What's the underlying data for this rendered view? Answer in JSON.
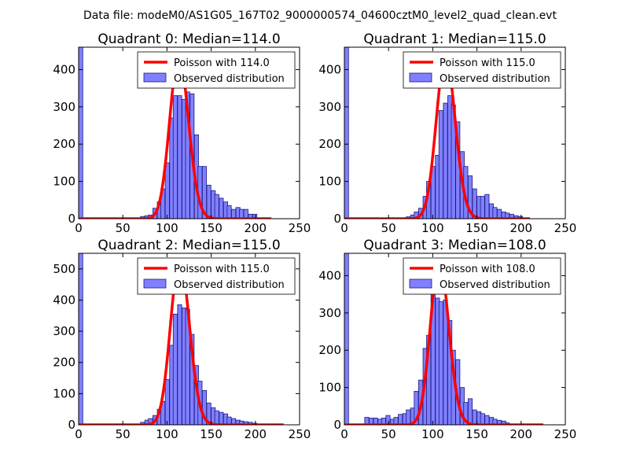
{
  "figure": {
    "suptitle": "Data file: modeM0/AS1G05_167T02_9000000574_04600cztM0_level2_quad_clean.evt",
    "colors": {
      "bar_fill": "#8080ff",
      "bar_edge": "#1a1a80",
      "poisson_line": "#ff0000",
      "axes": "#000000"
    }
  },
  "chart_data": [
    {
      "type": "bar",
      "title": "Quadrant 0: Median=114.0",
      "xlim": [
        0,
        250
      ],
      "ylim": [
        0,
        460
      ],
      "xticks": [
        0,
        50,
        100,
        150,
        200,
        250
      ],
      "yticks": [
        0,
        100,
        200,
        300,
        400
      ],
      "bin_width": 4.7,
      "bins": [
        [
          0,
          460
        ],
        [
          70,
          6
        ],
        [
          75,
          8
        ],
        [
          79,
          10
        ],
        [
          84,
          28
        ],
        [
          89,
          45
        ],
        [
          93,
          80
        ],
        [
          98,
          150
        ],
        [
          103,
          270
        ],
        [
          107,
          330
        ],
        [
          112,
          330
        ],
        [
          117,
          320
        ],
        [
          121,
          340
        ],
        [
          126,
          335
        ],
        [
          131,
          225
        ],
        [
          135,
          140
        ],
        [
          140,
          140
        ],
        [
          145,
          90
        ],
        [
          150,
          75
        ],
        [
          154,
          65
        ],
        [
          159,
          55
        ],
        [
          164,
          45
        ],
        [
          168,
          35
        ],
        [
          173,
          25
        ],
        [
          178,
          30
        ],
        [
          182,
          25
        ],
        [
          187,
          25
        ],
        [
          192,
          12
        ],
        [
          197,
          12
        ]
      ],
      "poisson": {
        "label": "Poisson with 114.0",
        "mean": 114.0,
        "peak": 435,
        "x_range": [
          0,
          218
        ]
      },
      "legend": [
        "Poisson with 114.0",
        "Observed distribution"
      ]
    },
    {
      "type": "bar",
      "title": "Quadrant 1: Median=115.0",
      "xlim": [
        0,
        250
      ],
      "ylim": [
        0,
        460
      ],
      "xticks": [
        0,
        50,
        100,
        150,
        200,
        250
      ],
      "yticks": [
        0,
        100,
        200,
        300,
        400
      ],
      "bin_width": 4.7,
      "bins": [
        [
          0,
          460
        ],
        [
          70,
          5
        ],
        [
          75,
          10
        ],
        [
          79,
          18
        ],
        [
          84,
          28
        ],
        [
          89,
          60
        ],
        [
          93,
          100
        ],
        [
          98,
          140
        ],
        [
          103,
          170
        ],
        [
          107,
          290
        ],
        [
          112,
          310
        ],
        [
          117,
          330
        ],
        [
          121,
          305
        ],
        [
          126,
          260
        ],
        [
          131,
          180
        ],
        [
          135,
          140
        ],
        [
          140,
          115
        ],
        [
          145,
          80
        ],
        [
          150,
          60
        ],
        [
          154,
          60
        ],
        [
          159,
          65
        ],
        [
          164,
          40
        ],
        [
          168,
          30
        ],
        [
          173,
          25
        ],
        [
          178,
          18
        ],
        [
          182,
          15
        ],
        [
          187,
          12
        ],
        [
          192,
          8
        ],
        [
          197,
          6
        ]
      ],
      "poisson": {
        "label": "Poisson with 115.0",
        "mean": 115.0,
        "peak": 435,
        "x_range": [
          0,
          210
        ]
      },
      "legend": [
        "Poisson with 115.0",
        "Observed distribution"
      ]
    },
    {
      "type": "bar",
      "title": "Quadrant 2: Median=115.0",
      "xlim": [
        0,
        250
      ],
      "ylim": [
        0,
        550
      ],
      "xticks": [
        0,
        50,
        100,
        150,
        200,
        250
      ],
      "yticks": [
        0,
        100,
        200,
        300,
        400,
        500
      ],
      "bin_width": 4.7,
      "bins": [
        [
          0,
          550
        ],
        [
          70,
          8
        ],
        [
          75,
          15
        ],
        [
          79,
          20
        ],
        [
          84,
          30
        ],
        [
          89,
          50
        ],
        [
          93,
          75
        ],
        [
          98,
          145
        ],
        [
          103,
          255
        ],
        [
          107,
          355
        ],
        [
          112,
          385
        ],
        [
          117,
          375
        ],
        [
          121,
          370
        ],
        [
          126,
          290
        ],
        [
          131,
          190
        ],
        [
          135,
          140
        ],
        [
          140,
          110
        ],
        [
          145,
          70
        ],
        [
          150,
          55
        ],
        [
          154,
          45
        ],
        [
          159,
          40
        ],
        [
          164,
          35
        ],
        [
          168,
          25
        ],
        [
          173,
          20
        ],
        [
          178,
          15
        ],
        [
          182,
          12
        ],
        [
          187,
          10
        ],
        [
          192,
          8
        ],
        [
          197,
          5
        ]
      ],
      "poisson": {
        "label": "Poisson with 115.0",
        "mean": 115.0,
        "peak": 530,
        "x_range": [
          0,
          232
        ]
      },
      "legend": [
        "Poisson with 115.0",
        "Observed distribution"
      ]
    },
    {
      "type": "bar",
      "title": "Quadrant 3: Median=108.0",
      "xlim": [
        0,
        250
      ],
      "ylim": [
        0,
        460
      ],
      "xticks": [
        0,
        50,
        100,
        150,
        200,
        250
      ],
      "yticks": [
        0,
        100,
        200,
        300,
        400
      ],
      "bin_width": 4.7,
      "bins": [
        [
          0,
          460
        ],
        [
          23,
          20
        ],
        [
          28,
          18
        ],
        [
          33,
          18
        ],
        [
          38,
          15
        ],
        [
          42,
          18
        ],
        [
          47,
          25
        ],
        [
          52,
          15
        ],
        [
          56,
          20
        ],
        [
          61,
          28
        ],
        [
          66,
          30
        ],
        [
          70,
          40
        ],
        [
          75,
          45
        ],
        [
          79,
          90
        ],
        [
          84,
          120
        ],
        [
          89,
          205
        ],
        [
          93,
          240
        ],
        [
          98,
          350
        ],
        [
          103,
          340
        ],
        [
          107,
          330
        ],
        [
          112,
          335
        ],
        [
          117,
          280
        ],
        [
          121,
          200
        ],
        [
          126,
          175
        ],
        [
          131,
          100
        ],
        [
          135,
          60
        ],
        [
          140,
          70
        ],
        [
          145,
          40
        ],
        [
          150,
          35
        ],
        [
          154,
          30
        ],
        [
          159,
          25
        ],
        [
          164,
          20
        ],
        [
          168,
          15
        ],
        [
          173,
          12
        ],
        [
          178,
          10
        ],
        [
          182,
          5
        ]
      ],
      "poisson": {
        "label": "Poisson with 108.0",
        "mean": 108.0,
        "peak": 440,
        "x_range": [
          0,
          225
        ]
      },
      "legend": [
        "Poisson with 108.0",
        "Observed distribution"
      ]
    }
  ]
}
